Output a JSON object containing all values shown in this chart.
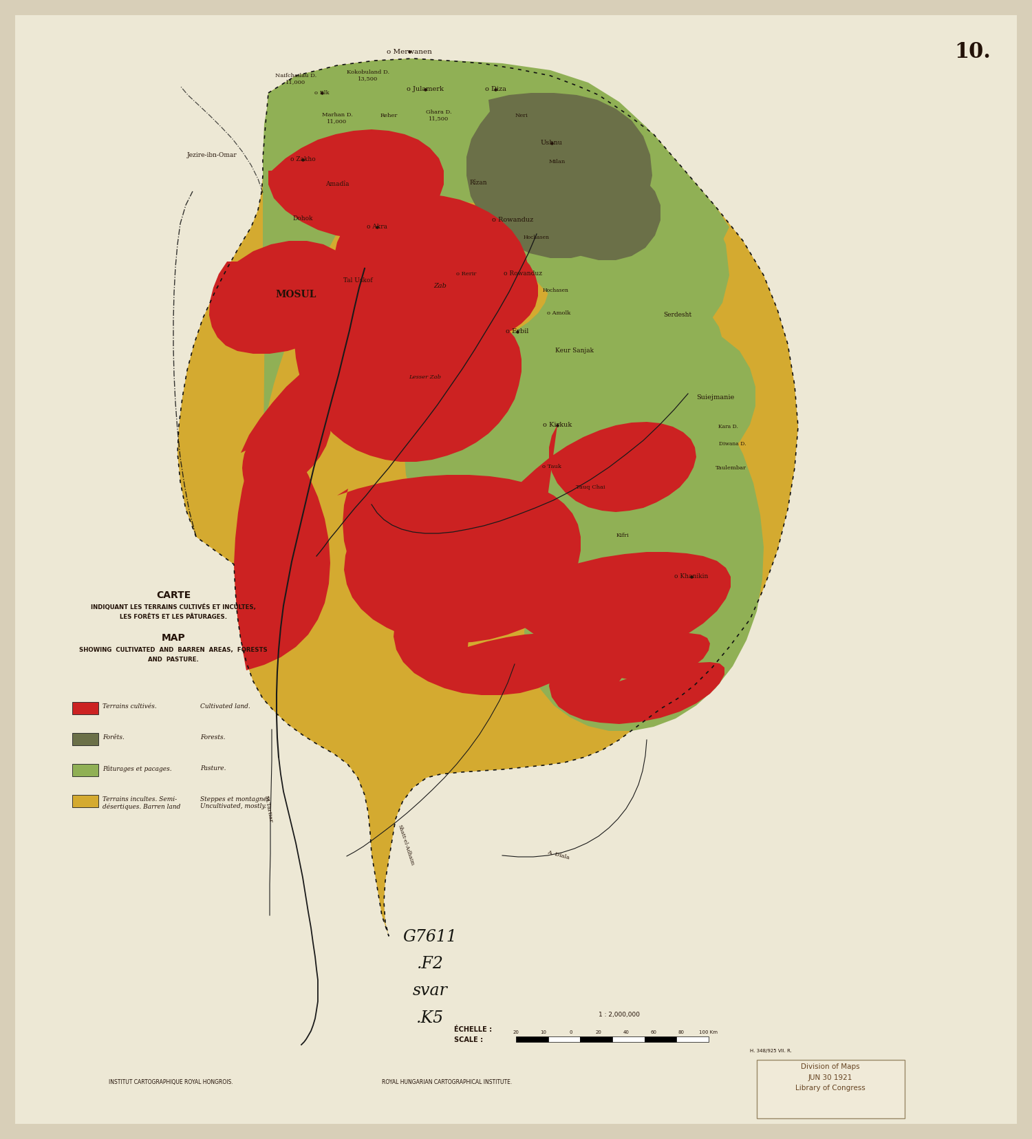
{
  "background_color": "#d8cfb8",
  "paper_color": "#ede8d5",
  "colors": {
    "cultivated": "#cc2222",
    "forest_dark": "#6b7048",
    "pasture": "#90b055",
    "barren": "#d4aa30",
    "water": "#aabbd0"
  },
  "text_color": "#231208",
  "sheet_number": "10.",
  "title_fr1": "CARTE",
  "title_fr2": "INDIQUANT LES TERRAINS CULTIVÉS ET INCULTES,",
  "title_fr3": "LES FORÊTS ET LES PÂTURAGES.",
  "title_en1": "MAP",
  "title_en2": "SHOWING  CULTIVATED  AND  BARREN  AREAS,  FORESTS",
  "title_en3": "AND  PASTURE.",
  "legend": [
    {
      "color": "#cc2222",
      "fr": "Terrains cultivés.",
      "en": "Cultivated land."
    },
    {
      "color": "#6b7048",
      "fr": "Forêts.",
      "en": "Forests."
    },
    {
      "color": "#90b055",
      "fr": "Pâturages et pacages.",
      "en": "Pasture."
    },
    {
      "color": "#d4aa30",
      "fr": "Terrains incultes. Semi-\ndésertiques. Barren land",
      "en": "Steppes et montagnes\nUncultivated, mostly."
    }
  ],
  "scale_ratio": "1 : 2,000,000",
  "echelle_label": "ÉCHELLE :",
  "scale_label": "SCALE :",
  "credit_fr": "INSTITUT CARTOGRAPHIQUE ROYAL HONGROIS.",
  "credit_en": "ROYAL HUNGARIAN CARTOGRAPHICAL INSTITUTE.",
  "catalog": "G7611\n.F2\nsvar\n.K5",
  "stamp": "Division of Maps\nJUN 30 1921\nLibrary of Congress",
  "small_print": "H. 348/925 VII. R."
}
